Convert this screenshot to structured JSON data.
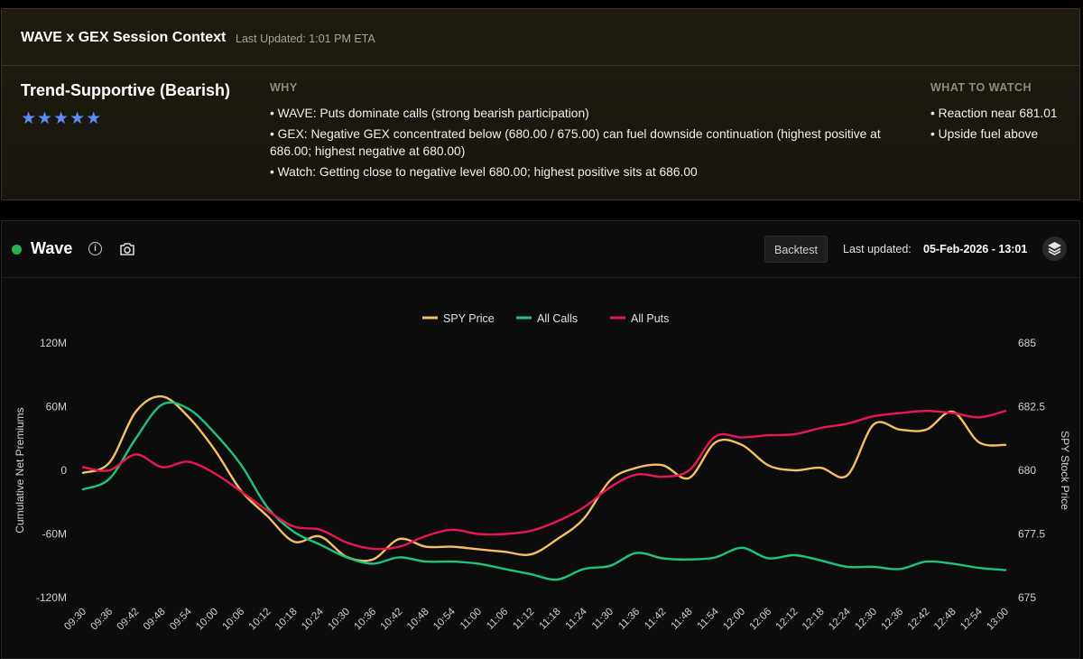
{
  "context": {
    "title": "WAVE x GEX Session Context",
    "last_updated": "Last Updated: 1:01 PM ETA",
    "signal": "Trend-Supportive (Bearish)",
    "stars": "★★★★★",
    "rating": 5,
    "why_heading": "WHY",
    "why_items": [
      "• WAVE: Puts dominate calls (strong bearish participation)",
      "• GEX: Negative GEX concentrated below (680.00 / 675.00) can fuel downside continuation (highest positive at 686.00; highest negative at 680.00)",
      "• Watch: Getting close to negative level 680.00; highest positive sits at 686.00"
    ],
    "watch_heading": "WHAT TO WATCH",
    "watch_items": [
      "• Reaction near 681.01",
      "• Upside fuel above"
    ]
  },
  "wave": {
    "title": "Wave",
    "info_glyph": "i",
    "backtest_label": "Backtest",
    "last_updated_label": "Last updated:",
    "last_updated_value": "05-Feb-2026 - 13:01"
  },
  "chart_data": {
    "type": "line",
    "xlabel": "",
    "ylabel": "Cumulative Net Premiums",
    "y2label": "SPY Stock Price",
    "ylim": [
      -120,
      120
    ],
    "y_ticks": [
      "120M",
      "60M",
      "0",
      "-60M",
      "-120M"
    ],
    "y2lim": [
      675,
      685
    ],
    "y2_ticks": [
      "685",
      "682.5",
      "680",
      "677.5",
      "675"
    ],
    "legend_position": "top-center",
    "grid": false,
    "x": [
      "09:30",
      "09:36",
      "09:42",
      "09:48",
      "09:54",
      "10:00",
      "10:06",
      "10:12",
      "10:18",
      "10:24",
      "10:30",
      "10:36",
      "10:42",
      "10:48",
      "10:54",
      "11:00",
      "11:06",
      "11:12",
      "11:18",
      "11:24",
      "11:30",
      "11:36",
      "11:42",
      "11:48",
      "11:54",
      "12:00",
      "12:06",
      "12:12",
      "12:18",
      "12:24",
      "12:30",
      "12:36",
      "12:42",
      "12:48",
      "12:54",
      "13:00"
    ],
    "series": [
      {
        "name": "SPY Price",
        "axis": "right",
        "color": "#f5c063",
        "values": [
          679.9,
          680.3,
          682.3,
          682.9,
          682.1,
          680.8,
          679.2,
          678.2,
          677.2,
          677.4,
          676.6,
          676.5,
          677.3,
          677.0,
          677.0,
          676.9,
          676.8,
          676.7,
          677.3,
          678.1,
          679.6,
          680.1,
          680.2,
          679.7,
          681.1,
          681.0,
          680.2,
          680.0,
          680.1,
          679.8,
          681.8,
          681.6,
          681.6,
          682.3,
          681.1,
          681.0
        ]
      },
      {
        "name": "All Calls",
        "axis": "left",
        "color": "#1fc47a",
        "values": [
          -18,
          -8,
          30,
          62,
          58,
          35,
          5,
          -35,
          -58,
          -70,
          -82,
          -88,
          -82,
          -86,
          -86,
          -88,
          -93,
          -98,
          -103,
          -93,
          -90,
          -78,
          -83,
          -84,
          -82,
          -73,
          -83,
          -80,
          -85,
          -91,
          -91,
          -93,
          -86,
          -88,
          -92,
          -94
        ]
      },
      {
        "name": "All Puts",
        "axis": "left",
        "color": "#e8174f",
        "values": [
          3,
          0,
          15,
          3,
          8,
          -3,
          -20,
          -38,
          -53,
          -56,
          -68,
          -74,
          -72,
          -62,
          -56,
          -60,
          -60,
          -57,
          -48,
          -35,
          -16,
          -4,
          -6,
          0,
          32,
          31,
          33,
          34,
          40,
          44,
          51,
          54,
          56,
          54,
          50,
          56
        ]
      }
    ]
  }
}
